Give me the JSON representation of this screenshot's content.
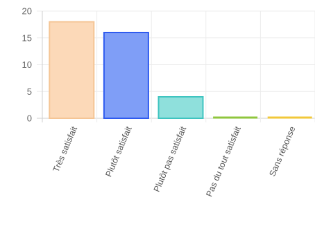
{
  "chart_data": {
    "type": "bar",
    "title": "",
    "xlabel": "",
    "ylabel": "",
    "ylim": [
      0,
      20
    ],
    "yticks": [
      0,
      5,
      10,
      15,
      20
    ],
    "grid": true,
    "legend": "none",
    "categories": [
      "Très satisfait",
      "Plutôt satisfait",
      "Plutôt pas satisfait",
      "Pas du tout satisfait",
      "Sans réponse"
    ],
    "values": [
      18,
      16,
      4,
      0,
      0
    ],
    "colors": {
      "fill": [
        "#fcd9b8",
        "#7f9ef7",
        "#8fe0dc",
        "#c9e3a3",
        "#fde6a8"
      ],
      "stroke": [
        "#f5c595",
        "#2f5bef",
        "#3fc4c0",
        "#8fc63d",
        "#f2c83a"
      ],
      "grid": "#ececec",
      "axis": "#cfcfcf"
    }
  }
}
